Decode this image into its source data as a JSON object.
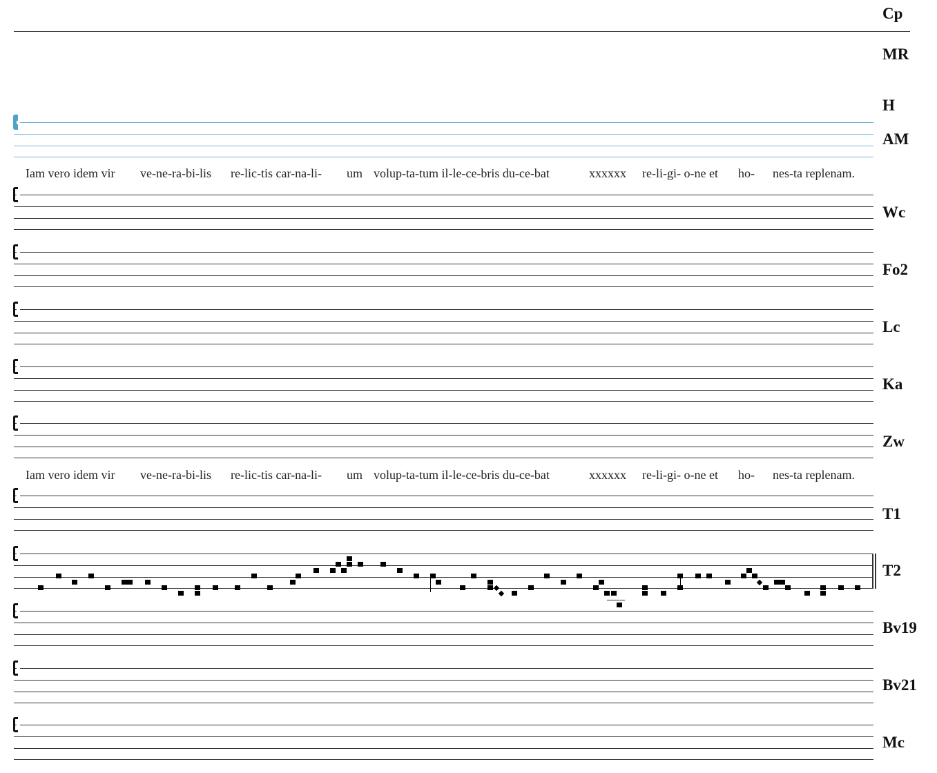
{
  "manuscripts": [
    "Cp",
    "MR",
    "H",
    "AM",
    "Wc",
    "Fo2",
    "Lc",
    "Ka",
    "Zw",
    "T1",
    "T2",
    "Bv19",
    "Bv21",
    "Mc"
  ],
  "lyrics": [
    "Iam vero idem vir",
    "ve-ne-ra-bi-lis",
    "re-lic-tis car-na-li-",
    "um",
    "volup-ta-tum il-le-ce-bris du-ce-bat",
    "xxxxxx",
    "re-li-gi- o-ne et",
    "ho-",
    "nes-ta replenam."
  ],
  "colors": {
    "highlight_staff": "#6fb6d6",
    "ink": "#000000"
  },
  "t2_melody_steps_above_bottom_line": [
    [
      0
    ],
    [
      2
    ],
    [
      1
    ],
    [
      2
    ],
    [
      0
    ],
    [
      1
    ],
    [
      1
    ],
    [
      1
    ],
    [
      0
    ],
    [
      -1
    ],
    [
      0,
      -1
    ],
    [
      0
    ],
    [
      0
    ],
    [
      2
    ],
    [
      0
    ],
    [
      1
    ],
    [
      2
    ],
    [
      3
    ],
    [
      3
    ],
    [
      4
    ],
    [
      3
    ],
    [
      4,
      5
    ],
    [
      4
    ],
    [
      4
    ],
    [
      3
    ],
    [
      2
    ],
    [
      2
    ],
    [
      1
    ],
    [
      0
    ],
    [
      2
    ],
    [
      1,
      0
    ],
    [
      "d0"
    ],
    [
      "d-1"
    ],
    [
      -1
    ],
    [
      0
    ],
    [
      2
    ],
    [
      1
    ],
    [
      2
    ],
    [
      0
    ],
    [
      1
    ],
    [
      -1
    ],
    [
      -1
    ],
    [
      -3
    ],
    [
      0,
      -1
    ],
    [
      -1
    ],
    [
      2,
      0
    ],
    [
      2
    ],
    [
      2
    ],
    [
      1
    ],
    [
      2
    ],
    [
      3
    ],
    [
      2
    ],
    [
      "d1"
    ],
    [
      0
    ],
    [
      1
    ],
    [
      1
    ],
    [
      0
    ],
    [
      -1
    ],
    [
      0,
      -1
    ],
    [
      0
    ],
    [
      0
    ]
  ]
}
